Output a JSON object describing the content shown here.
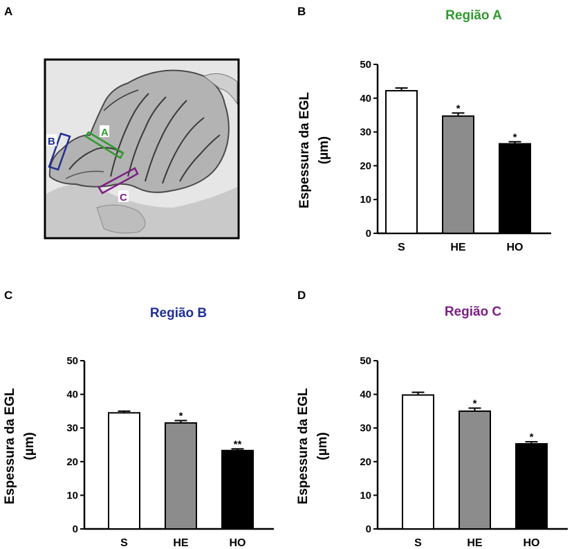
{
  "panels": {
    "A": {
      "letter": "A"
    },
    "B": {
      "letter": "B"
    },
    "C": {
      "letter": "C"
    },
    "D": {
      "letter": "D"
    }
  },
  "histology": {
    "regions": [
      {
        "label": "A",
        "color": "#2e9a2e"
      },
      {
        "label": "B",
        "color": "#1f2f94"
      },
      {
        "label": "C",
        "color": "#7e1f86"
      }
    ]
  },
  "colors": {
    "S": "#ffffff",
    "HE": "#8c8c8c",
    "HO": "#000000"
  },
  "chart_data": [
    {
      "type": "bar",
      "title": "Região A",
      "title_color": "#2e9a2e",
      "ylabel_line1": "Espessura da EGL",
      "ylabel_line2": "(µm)",
      "categories": [
        "S",
        "HE",
        "HO"
      ],
      "values": [
        42.2,
        34.7,
        26.5
      ],
      "errors": [
        0.8,
        0.9,
        0.6
      ],
      "significance": [
        "",
        "*",
        "*"
      ],
      "ylim": [
        0,
        50
      ],
      "yticks": [
        "0",
        "10",
        "20",
        "30",
        "40",
        "50"
      ]
    },
    {
      "type": "bar",
      "title": "Região B",
      "title_color": "#1f2f94",
      "ylabel_line1": "Espessura da EGL",
      "ylabel_line2": "(µm)",
      "categories": [
        "S",
        "HE",
        "HO"
      ],
      "values": [
        34.5,
        31.5,
        23.3
      ],
      "errors": [
        0.5,
        0.7,
        0.5
      ],
      "significance": [
        "",
        "*",
        "**"
      ],
      "ylim": [
        0,
        50
      ],
      "yticks": [
        "0",
        "10",
        "20",
        "30",
        "40",
        "50"
      ]
    },
    {
      "type": "bar",
      "title": "Região C",
      "title_color": "#7e1f86",
      "ylabel_line1": "Espessura da EGL",
      "ylabel_line2": "(µm)",
      "categories": [
        "S",
        "HE",
        "HO"
      ],
      "values": [
        39.8,
        35.0,
        25.3
      ],
      "errors": [
        0.8,
        0.9,
        0.6
      ],
      "significance": [
        "",
        "*",
        "*"
      ],
      "ylim": [
        0,
        50
      ],
      "yticks": [
        "0",
        "10",
        "20",
        "30",
        "40",
        "50"
      ]
    }
  ]
}
